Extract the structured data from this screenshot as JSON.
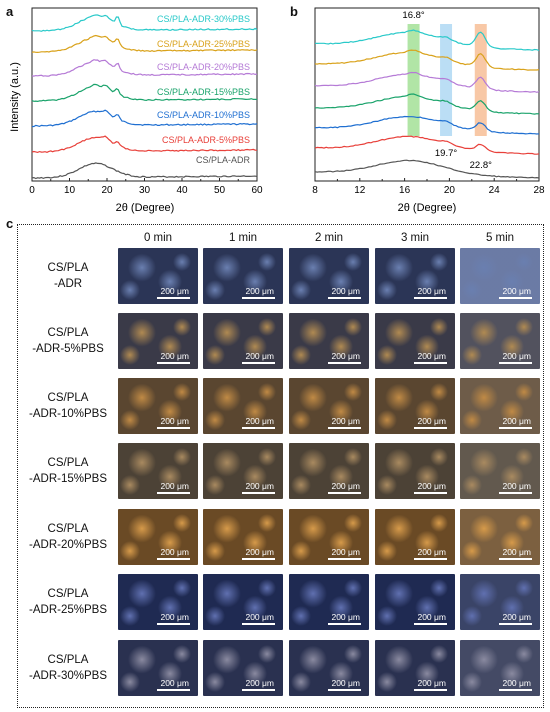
{
  "panel_a": {
    "letter": "a",
    "chart_data": {
      "type": "line",
      "xlabel": "2θ (Degree)",
      "ylabel": "Intensity (a.u.)",
      "xlim": [
        0,
        60
      ],
      "xticks": [
        "0",
        "10",
        "20",
        "30",
        "40",
        "50",
        "60"
      ],
      "series": [
        {
          "name": "CS/PLA-ADR",
          "color": "#555555"
        },
        {
          "name": "CS/PLA-ADR-5%PBS",
          "color": "#e8403a"
        },
        {
          "name": "CS/PLA-ADR-10%PBS",
          "color": "#1f6fd1"
        },
        {
          "name": "CS/PLA-ADR-15%PBS",
          "color": "#1aa36b"
        },
        {
          "name": "CS/PLA-ADR-20%PBS",
          "color": "#b57ad6"
        },
        {
          "name": "CS/PLA-ADR-25%PBS",
          "color": "#d9a21b"
        },
        {
          "name": "CS/PLA-ADR-30%PBS",
          "color": "#29c9c9"
        }
      ]
    }
  },
  "panel_b": {
    "letter": "b",
    "chart_data": {
      "type": "line",
      "xlabel": "2θ (Degree)",
      "xlim": [
        8,
        28
      ],
      "xticks": [
        "8",
        "12",
        "16",
        "20",
        "24",
        "28"
      ],
      "annotations": [
        "16.8°",
        "19.7°",
        "22.8°"
      ],
      "highlight_bands": [
        {
          "center": 16.8,
          "color": "#7dd36b"
        },
        {
          "center": 19.7,
          "color": "#8ec8ef"
        },
        {
          "center": 22.8,
          "color": "#f3a36b"
        }
      ]
    }
  },
  "panel_c": {
    "letter": "c",
    "columns": [
      "0 min",
      "1 min",
      "2 min",
      "3 min",
      "5 min"
    ],
    "scale_label": "200 μm",
    "rows": [
      {
        "line1": "CS/PLA",
        "line2": "-ADR",
        "tone": "#2b3556",
        "hi": "#6a7fb0"
      },
      {
        "line1": "CS/PLA",
        "line2": "-ADR-5%PBS",
        "tone": "#3a3a48",
        "hi": "#b08a52"
      },
      {
        "line1": "CS/PLA",
        "line2": "-ADR-10%PBS",
        "tone": "#5a4630",
        "hi": "#c08a45"
      },
      {
        "line1": "CS/PLA",
        "line2": "-ADR-15%PBS",
        "tone": "#4c4236",
        "hi": "#a98a60"
      },
      {
        "line1": "CS/PLA",
        "line2": "-ADR-20%PBS",
        "tone": "#6a4a25",
        "hi": "#d69a4a"
      },
      {
        "line1": "CS/PLA",
        "line2": "-ADR-25%PBS",
        "tone": "#1f2a52",
        "hi": "#6070b0"
      },
      {
        "line1": "CS/PLA",
        "line2": "-ADR-30%PBS",
        "tone": "#2a3150",
        "hi": "#8a8aa0"
      }
    ]
  }
}
